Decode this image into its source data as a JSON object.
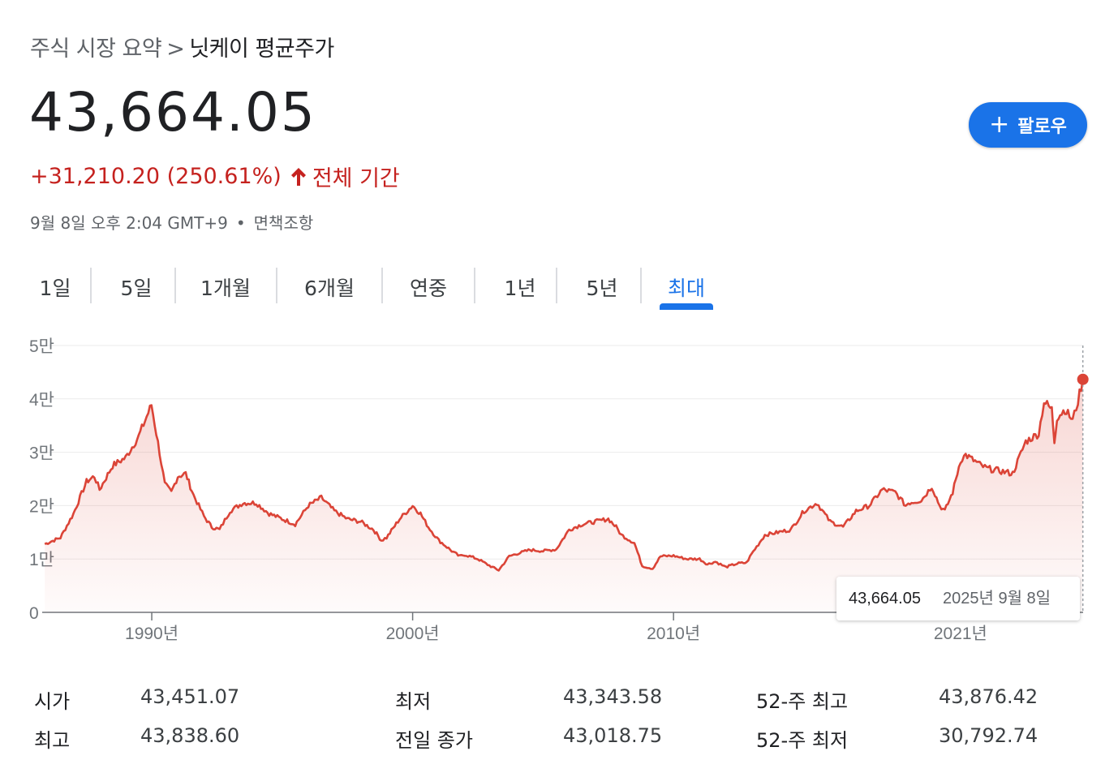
{
  "breadcrumb": {
    "root": "주식 시장 요약",
    "separator": ">",
    "current": "닛케이 평균주가"
  },
  "quote": {
    "price": "43,664.05",
    "change": "+31,210.20 (250.61%)",
    "period": "전체 기간",
    "timestamp": "9월 8일 오후 2:04 GMT+9",
    "separator": "•",
    "disclaimer": "면책조항"
  },
  "follow_button": {
    "label": "팔로우",
    "icon": "plus-icon"
  },
  "tabs": [
    "1일",
    "5일",
    "1개월",
    "6개월",
    "연중",
    "1년",
    "5년",
    "최대"
  ],
  "active_tab": "최대",
  "colors": {
    "accent": "#1a73e8",
    "positive_change": "#c5221f",
    "line": "#db4437"
  },
  "chart_data": {
    "type": "area",
    "title": "",
    "xlabel": "",
    "ylabel": "",
    "ylim": [
      0,
      50000
    ],
    "y_ticks": [
      0,
      10000,
      20000,
      30000,
      40000,
      50000
    ],
    "y_tick_labels": [
      "0",
      "1만",
      "2만",
      "3만",
      "4만",
      "5만"
    ],
    "x_ticks": [
      1990,
      2000,
      2010,
      2021
    ],
    "x_tick_labels": [
      "1990년",
      "2000년",
      "2010년",
      "2021년"
    ],
    "xlim": [
      1985.8,
      2025.7
    ],
    "grid": true,
    "series": [
      {
        "x": [
          1985.9,
          1986.5,
          1987.0,
          1987.5,
          1987.8,
          1988.0,
          1988.5,
          1989.0,
          1989.5,
          1989.99,
          1990.3,
          1990.5,
          1990.75,
          1991.0,
          1991.3,
          1991.6,
          1992.0,
          1992.3,
          1992.6,
          1993.0,
          1993.5,
          1994.0,
          1994.5,
          1995.0,
          1995.5,
          1996.0,
          1996.5,
          1997.0,
          1997.5,
          1998.0,
          1998.5,
          1998.8,
          1999.0,
          1999.5,
          2000.0,
          2000.3,
          2000.6,
          2001.0,
          2001.5,
          2001.8,
          2002.0,
          2002.5,
          2003.0,
          2003.3,
          2003.7,
          2004.0,
          2004.5,
          2005.0,
          2005.5,
          2006.0,
          2006.5,
          2007.0,
          2007.5,
          2007.8,
          2008.0,
          2008.5,
          2008.8,
          2009.2,
          2009.5,
          2010.0,
          2010.5,
          2011.0,
          2011.3,
          2011.6,
          2012.0,
          2012.5,
          2012.8,
          2013.0,
          2013.5,
          2014.0,
          2014.5,
          2015.0,
          2015.5,
          2016.0,
          2016.5,
          2017.0,
          2017.5,
          2018.0,
          2018.5,
          2018.9,
          2019.0,
          2019.5,
          2019.9,
          2020.2,
          2020.4,
          2020.7,
          2021.0,
          2021.2,
          2021.5,
          2021.8,
          2022.0,
          2022.5,
          2023.0,
          2023.5,
          2024.0,
          2024.2,
          2024.5,
          2024.6,
          2024.7,
          2025.0,
          2025.3,
          2025.5,
          2025.69
        ],
        "values": [
          12800,
          14000,
          18500,
          24500,
          25500,
          23000,
          27500,
          29000,
          33000,
          38900,
          30000,
          24000,
          22500,
          25500,
          26000,
          22000,
          18000,
          16000,
          15500,
          19000,
          20500,
          20500,
          18500,
          17500,
          16500,
          20000,
          21500,
          19000,
          17500,
          17000,
          15500,
          13500,
          14000,
          17500,
          20000,
          18500,
          16000,
          13500,
          11500,
          10500,
          10800,
          10000,
          8600,
          7900,
          10500,
          11000,
          11700,
          11500,
          11800,
          15500,
          16500,
          17000,
          17500,
          16000,
          14500,
          13000,
          8700,
          8200,
          10500,
          10600,
          10000,
          10000,
          9000,
          9500,
          8500,
          9200,
          9300,
          11000,
          14500,
          15000,
          15500,
          19000,
          20500,
          17000,
          16000,
          19000,
          20000,
          23000,
          22500,
          20000,
          20500,
          21000,
          23600,
          20000,
          19000,
          22500,
          28500,
          29500,
          28500,
          27500,
          27000,
          26500,
          26000,
          32000,
          33500,
          39500,
          38000,
          32000,
          36500,
          38000,
          36000,
          39500,
          43664.05
        ]
      }
    ],
    "marker": {
      "value": "43,664.05",
      "date": "2025년 9월 8일"
    }
  },
  "stats": [
    {
      "label": "시가",
      "value": "43,451.07"
    },
    {
      "label": "최고",
      "value": "43,838.60"
    },
    {
      "label": "최저",
      "value": "43,343.58"
    },
    {
      "label": "전일 종가",
      "value": "43,018.75"
    },
    {
      "label": "52-주 최고",
      "value": "43,876.42"
    },
    {
      "label": "52-주 최저",
      "value": "30,792.74"
    }
  ]
}
